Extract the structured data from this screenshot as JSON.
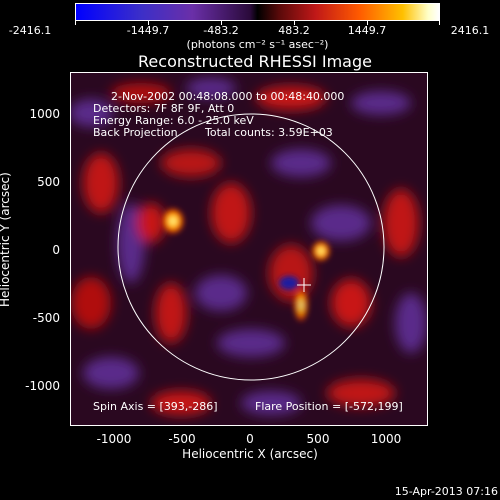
{
  "colorbar": {
    "tick_labels": [
      "-2416.1",
      "-1449.7",
      "-483.2",
      "483.2",
      "1449.7",
      "2416.1"
    ],
    "units": "(photons cm⁻² s⁻¹ asec⁻²)"
  },
  "title": "Reconstructed RHESSI Image",
  "info": {
    "time_range": "2-Nov-2002 00:48:08.000 to 00:48:40.000",
    "detectors": "Detectors: 7F 8F 9F, Att 0",
    "energy": "Energy Range: 6.0 - 25.0 keV",
    "method": "Back Projection",
    "counts": "Total counts: 3.59E+03",
    "spin_axis": "Spin Axis = [393,-286]",
    "flare_position": "Flare Position = [-572,199]"
  },
  "axes": {
    "y_label": "Heliocentric Y (arcsec)",
    "x_label": "Heliocentric X (arcsec)",
    "y_ticks": [
      "1000",
      "500",
      "0",
      "-500",
      "-1000"
    ],
    "x_ticks": [
      "-1000",
      "-500",
      "0",
      "500",
      "1000"
    ]
  },
  "timestamp": "15-Apr-2013 07:16"
}
